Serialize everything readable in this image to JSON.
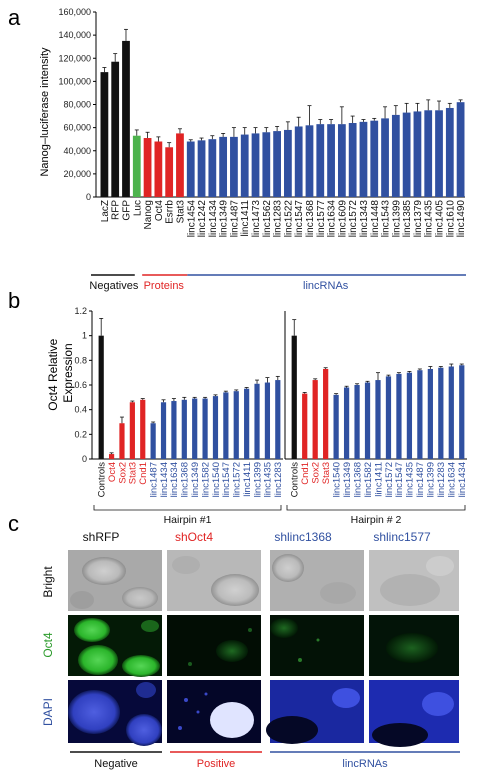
{
  "panels": {
    "a": "a",
    "b": "b",
    "c": "c"
  },
  "colors": {
    "negative": "#111111",
    "control": "#111111",
    "luc": "#4db34d",
    "protein": "#e02424",
    "lincrna": "#3050a0",
    "grid_text": "#222222"
  },
  "chart_data": [
    {
      "type": "bar",
      "panel": "a",
      "ylabel": "Nanog–luciferase intensity",
      "ylim": [
        0,
        160000
      ],
      "ytick_labels": [
        "0",
        "20,000",
        "40,000",
        "60,000",
        "80,000",
        "100,000",
        "120,000",
        "140,000",
        "160,000"
      ],
      "yticks": [
        0,
        20000,
        40000,
        60000,
        80000,
        100000,
        120000,
        140000,
        160000
      ],
      "categories": [
        "LacZ",
        "RFP",
        "GFP",
        "Luc",
        "Nanog",
        "Oct4",
        "Esrrb",
        "Stat3",
        "linc1454",
        "linc1242",
        "linc1434",
        "linc1349",
        "linc1487",
        "linc1411",
        "linc1473",
        "linc1562",
        "linc1283",
        "linc1522",
        "linc1547",
        "linc1368",
        "linc1577",
        "linc1634",
        "linc1609",
        "linc1572",
        "linc1343",
        "linc1448",
        "linc1543",
        "linc1399",
        "linc1385",
        "linc1379",
        "linc1435",
        "linc1405",
        "linc1610",
        "linc1490"
      ],
      "groups": [
        "neg",
        "neg",
        "neg",
        "luc",
        "prot",
        "prot",
        "prot",
        "prot",
        "linc",
        "linc",
        "linc",
        "linc",
        "linc",
        "linc",
        "linc",
        "linc",
        "linc",
        "linc",
        "linc",
        "linc",
        "linc",
        "linc",
        "linc",
        "linc",
        "linc",
        "linc",
        "linc",
        "linc",
        "linc",
        "linc",
        "linc",
        "linc",
        "linc",
        "linc"
      ],
      "values": [
        108000,
        117000,
        135000,
        53000,
        51000,
        48000,
        43000,
        55000,
        48000,
        49000,
        50000,
        52000,
        52000,
        54000,
        55000,
        56000,
        57000,
        58000,
        61000,
        62000,
        63000,
        63000,
        63000,
        64000,
        65000,
        66000,
        68000,
        71000,
        73000,
        74000,
        75000,
        75000,
        77000,
        82000
      ],
      "errors": [
        4000,
        7000,
        10000,
        5000,
        5000,
        4000,
        4000,
        4000,
        1500,
        2000,
        3000,
        3000,
        8000,
        6000,
        5000,
        4000,
        4000,
        7000,
        8000,
        17000,
        4000,
        4000,
        15000,
        6000,
        2000,
        2000,
        10000,
        8000,
        8000,
        7000,
        9000,
        8000,
        4000,
        2000
      ],
      "group_labels": {
        "negatives": "Negatives",
        "proteins": "Proteins",
        "lincrnas": "lincRNAs"
      }
    },
    {
      "type": "bar",
      "panel": "b",
      "ylabel_lines": [
        "Oct4 Relative",
        "Expression"
      ],
      "ylim": [
        0,
        1.2
      ],
      "yticks": [
        0,
        0.2,
        0.4,
        0.6,
        0.8,
        1.0,
        1.2
      ],
      "ytick_labels": [
        "0",
        "0.2",
        "0.4",
        "0.6",
        "0.8",
        "1",
        "1.2"
      ],
      "series": [
        {
          "name": "Hairpin #1",
          "categories": [
            "Controls",
            "Oct4",
            "Sox2",
            "Stat3",
            "Cnd1",
            "linc1487",
            "linc1434",
            "linc1634",
            "linc1368",
            "linc1349",
            "linc1582",
            "linc1540",
            "linc1547",
            "linc1572",
            "linc1411",
            "linc1399",
            "linc1435",
            "linc1283"
          ],
          "groups": [
            "ctrl",
            "prot",
            "prot",
            "prot",
            "prot",
            "linc",
            "linc",
            "linc",
            "linc",
            "linc",
            "linc",
            "linc",
            "linc",
            "linc",
            "linc",
            "linc",
            "linc",
            "linc"
          ],
          "values": [
            1.0,
            0.04,
            0.29,
            0.46,
            0.48,
            0.29,
            0.46,
            0.47,
            0.48,
            0.49,
            0.49,
            0.51,
            0.54,
            0.55,
            0.57,
            0.61,
            0.62,
            0.64
          ],
          "errors": [
            0.14,
            0.01,
            0.05,
            0.01,
            0.01,
            0.01,
            0.02,
            0.02,
            0.02,
            0.01,
            0.01,
            0.01,
            0.01,
            0.01,
            0.01,
            0.03,
            0.04,
            0.03
          ]
        },
        {
          "name": "Hairpin # 2",
          "categories": [
            "Controls",
            "Cnd1",
            "Sox2",
            "Stat3",
            "linc1540",
            "linc1349",
            "linc1368",
            "linc1582",
            "linc1411",
            "linc1572",
            "linc1547",
            "linc1435",
            "linc1487",
            "linc1399",
            "linc1283",
            "linc1634",
            "linc1434"
          ],
          "groups": [
            "ctrl",
            "prot",
            "prot",
            "prot",
            "linc",
            "linc",
            "linc",
            "linc",
            "linc",
            "linc",
            "linc",
            "linc",
            "linc",
            "linc",
            "linc",
            "linc",
            "linc"
          ],
          "values": [
            1.0,
            0.53,
            0.64,
            0.73,
            0.52,
            0.58,
            0.6,
            0.62,
            0.64,
            0.67,
            0.69,
            0.7,
            0.72,
            0.73,
            0.74,
            0.75,
            0.76
          ],
          "errors": [
            0.13,
            0.01,
            0.01,
            0.01,
            0.01,
            0.01,
            0.01,
            0.01,
            0.06,
            0.01,
            0.01,
            0.01,
            0.01,
            0.02,
            0.01,
            0.02,
            0.01
          ]
        }
      ]
    }
  ],
  "microscopy": {
    "columns": [
      "shRFP",
      "shOct4",
      "shlinc1368",
      "shlinc1577"
    ],
    "column_colors": [
      "#111111",
      "#e02424",
      "#3050a0",
      "#3050a0"
    ],
    "rows": [
      "Bright",
      "Oct4",
      "DAPI"
    ],
    "row_colors": [
      "#111111",
      "#2a9a2a",
      "#3050a0"
    ],
    "bottom_labels": {
      "negative": "Negative",
      "positive": "Positive",
      "lincrnas": "lincRNAs"
    }
  }
}
